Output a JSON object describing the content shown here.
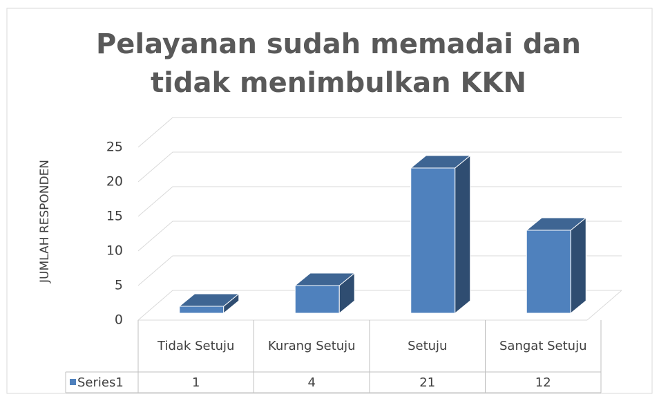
{
  "chart_data": {
    "type": "bar3d",
    "title": "Pelayanan sudah memadai dan tidak menimbulkan KKN",
    "y_label": "JUMLAH RESPONDEN",
    "categories": [
      "Tidak Setuju",
      "Kurang Setuju",
      "Setuju",
      "Sangat Setuju"
    ],
    "series": [
      {
        "name": "Series1",
        "color": "#4f81bd",
        "values": [
          1,
          4,
          21,
          12
        ]
      }
    ],
    "ylim": [
      0,
      25
    ],
    "yticks": [
      0,
      5,
      10,
      15,
      20,
      25
    ],
    "grid": true
  }
}
